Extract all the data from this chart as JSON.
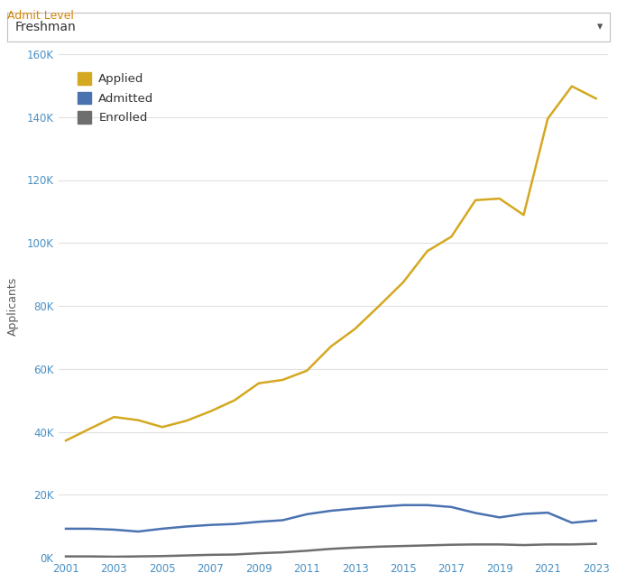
{
  "years": [
    2001,
    2002,
    2003,
    2004,
    2005,
    2006,
    2007,
    2008,
    2009,
    2010,
    2011,
    2012,
    2013,
    2014,
    2015,
    2016,
    2017,
    2018,
    2019,
    2020,
    2021,
    2022,
    2023
  ],
  "applied": [
    37200,
    41000,
    44700,
    43700,
    41500,
    43500,
    46500,
    50000,
    55400,
    56500,
    59400,
    67100,
    72700,
    80000,
    87500,
    97400,
    102000,
    113600,
    114100,
    108900,
    139500,
    149800,
    145900
  ],
  "admitted": [
    9200,
    9200,
    8900,
    8300,
    9200,
    9900,
    10400,
    10700,
    11400,
    11900,
    13800,
    14900,
    15600,
    16200,
    16700,
    16700,
    16100,
    14200,
    12800,
    13900,
    14300,
    11100,
    11800
  ],
  "enrolled": [
    400,
    400,
    300,
    400,
    500,
    700,
    900,
    1000,
    1400,
    1700,
    2200,
    2800,
    3200,
    3500,
    3700,
    3900,
    4100,
    4200,
    4200,
    4000,
    4200,
    4200,
    4400
  ],
  "applied_color": "#d4a820",
  "admitted_color": "#4a72b0",
  "enrolled_color": "#6e6e6e",
  "ylabel": "Applicants",
  "title_label": "Admit Level",
  "title_color": "#d4860b",
  "dropdown_label": "Freshman",
  "legend_labels": [
    "Applied",
    "Admitted",
    "Enrolled"
  ],
  "ylim": [
    0,
    160000
  ],
  "yticks": [
    0,
    20000,
    40000,
    60000,
    80000,
    100000,
    120000,
    140000,
    160000
  ],
  "background_color": "#ffffff",
  "grid_color": "#e0e0e0",
  "axis_label_color": "#5a5a5a",
  "tick_color": "#4a90c4",
  "dropdown_border_color": "#c0c0c0",
  "line_width": 1.8,
  "fig_width": 6.84,
  "fig_height": 6.35,
  "fig_dpi": 100
}
